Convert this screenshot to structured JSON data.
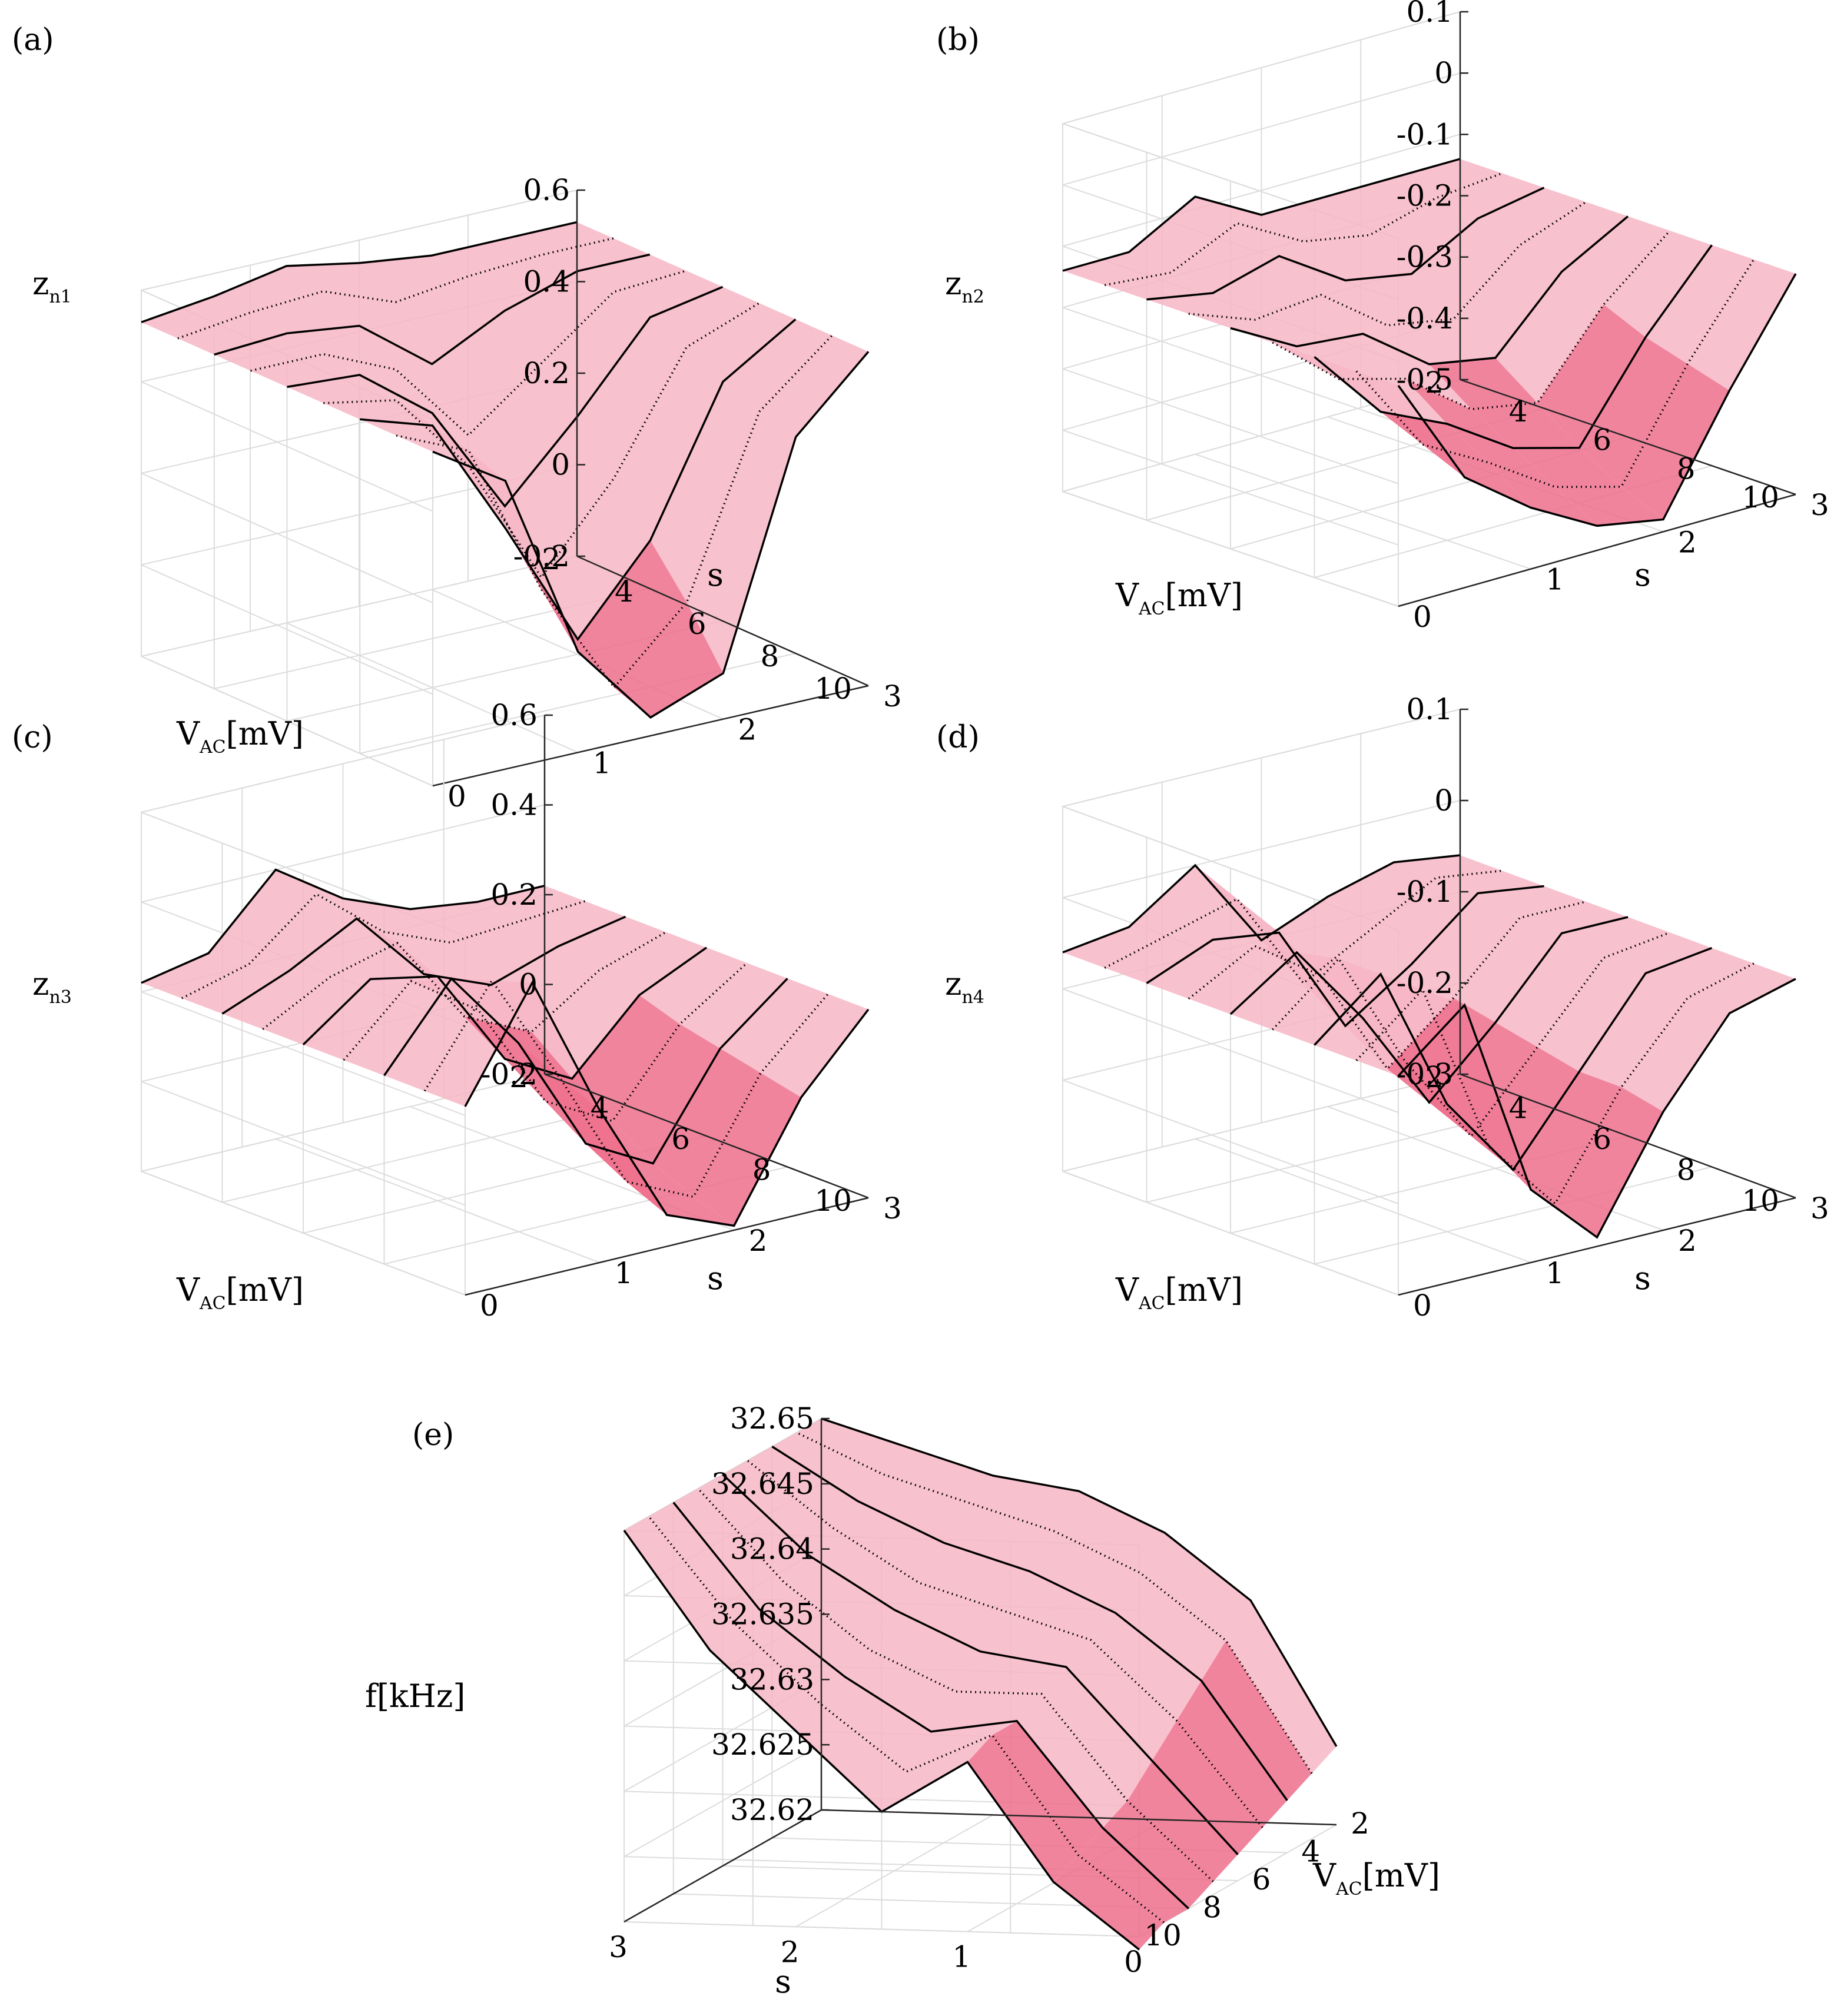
{
  "figure": {
    "accent_color": "#f7b6c6",
    "surface_color": "#f7b6c6",
    "surface_dark_color": "#ee6f8c",
    "curve_color": "#000000",
    "grid": true
  },
  "chart_data": [
    {
      "type": "surface",
      "panel_label": "(a)",
      "zlabel_main": "z",
      "zlabel_sub": "n1",
      "xlabel_main": "V",
      "xlabel_sub": "AC",
      "xlabel_unit": "[mV]",
      "ylabel": "s",
      "x_ticks": [
        "2",
        "4",
        "6",
        "8",
        "10"
      ],
      "y_ticks": [
        "3",
        "2",
        "1",
        "0"
      ],
      "z_ticks": [
        "-0.2",
        "0",
        "0.2",
        "0.4",
        "0.6"
      ],
      "xlim": [
        2,
        10
      ],
      "ylim": [
        0,
        3
      ],
      "zlim": [
        -0.2,
        0.6
      ],
      "curve_VAC": [
        2,
        3,
        4,
        5,
        6,
        7,
        8,
        9,
        10
      ],
      "s_grid": [
        0,
        0.5,
        1.0,
        1.5,
        2.0,
        2.5,
        3.0
      ],
      "surface_z": [
        [
          0.53,
          0.55,
          0.58,
          0.55,
          0.53,
          0.53,
          0.53
        ],
        [
          0.53,
          0.55,
          0.56,
          0.5,
          0.52,
          0.53,
          0.53
        ],
        [
          0.53,
          0.54,
          0.52,
          0.4,
          0.48,
          0.53,
          0.53
        ],
        [
          0.53,
          0.53,
          0.46,
          0.28,
          0.4,
          0.52,
          0.53
        ],
        [
          0.53,
          0.52,
          0.4,
          0.16,
          0.32,
          0.5,
          0.53
        ],
        [
          0.53,
          0.5,
          0.32,
          0.04,
          0.22,
          0.47,
          0.53
        ],
        [
          0.53,
          0.48,
          0.22,
          -0.06,
          0.12,
          0.43,
          0.53
        ],
        [
          0.53,
          0.46,
          0.12,
          -0.13,
          0.02,
          0.4,
          0.53
        ],
        [
          0.53,
          0.43,
          0.02,
          -0.16,
          -0.1,
          0.38,
          0.53
        ]
      ]
    },
    {
      "type": "surface",
      "panel_label": "(b)",
      "zlabel_main": "z",
      "zlabel_sub": "n2",
      "xlabel_main": "V",
      "xlabel_sub": "AC",
      "xlabel_unit": "[mV]",
      "ylabel": "s",
      "x_ticks": [
        "2",
        "4",
        "6",
        "8",
        "10"
      ],
      "y_ticks": [
        "3",
        "2",
        "1",
        "0"
      ],
      "z_ticks": [
        "-0.5",
        "-0.4",
        "-0.3",
        "-0.2",
        "-0.1",
        "0",
        "0.1"
      ],
      "xlim": [
        2,
        10
      ],
      "ylim": [
        0,
        3
      ],
      "zlim": [
        -0.5,
        0.1
      ],
      "curve_VAC": [
        2,
        3,
        4,
        5,
        6,
        7,
        8,
        9,
        10
      ],
      "s_grid": [
        0,
        0.5,
        1.0,
        1.5,
        2.0,
        2.5,
        3.0
      ],
      "surface_z": [
        [
          -0.14,
          -0.14,
          -0.08,
          -0.14,
          -0.14,
          -0.14,
          -0.14
        ],
        [
          -0.14,
          -0.15,
          -0.1,
          -0.16,
          -0.18,
          -0.15,
          -0.14
        ],
        [
          -0.14,
          -0.16,
          -0.13,
          -0.2,
          -0.22,
          -0.16,
          -0.14
        ],
        [
          -0.14,
          -0.18,
          -0.17,
          -0.25,
          -0.27,
          -0.18,
          -0.14
        ],
        [
          -0.14,
          -0.2,
          -0.21,
          -0.29,
          -0.31,
          -0.2,
          -0.14
        ],
        [
          -0.14,
          -0.23,
          -0.26,
          -0.34,
          -0.36,
          -0.23,
          -0.14
        ],
        [
          -0.14,
          -0.26,
          -0.31,
          -0.38,
          -0.41,
          -0.26,
          -0.14
        ],
        [
          -0.14,
          -0.29,
          -0.35,
          -0.42,
          -0.45,
          -0.28,
          -0.14
        ],
        [
          -0.14,
          -0.32,
          -0.4,
          -0.46,
          -0.48,
          -0.3,
          -0.14
        ]
      ]
    },
    {
      "type": "surface",
      "panel_label": "(c)",
      "zlabel_main": "z",
      "zlabel_sub": "n3",
      "xlabel_main": "V",
      "xlabel_sub": "AC",
      "xlabel_unit": "[mV]",
      "ylabel": "s",
      "x_ticks": [
        "2",
        "4",
        "6",
        "8",
        "10"
      ],
      "y_ticks": [
        "3",
        "2",
        "1",
        "0"
      ],
      "z_ticks": [
        "-0.2",
        "0",
        "0.2",
        "0.4",
        "0.6"
      ],
      "xlim": [
        2,
        10
      ],
      "ylim": [
        0,
        3
      ],
      "zlim": [
        -0.2,
        0.6
      ],
      "curve_VAC": [
        2,
        3,
        4,
        5,
        6,
        7,
        8,
        9,
        10
      ],
      "s_grid": [
        0,
        0.5,
        1.0,
        1.5,
        2.0,
        2.5,
        3.0
      ],
      "surface_z": [
        [
          0.22,
          0.25,
          0.4,
          0.3,
          0.24,
          0.22,
          0.22
        ],
        [
          0.22,
          0.26,
          0.38,
          0.26,
          0.2,
          0.21,
          0.22
        ],
        [
          0.22,
          0.28,
          0.36,
          0.2,
          0.14,
          0.19,
          0.22
        ],
        [
          0.22,
          0.3,
          0.34,
          0.14,
          0.07,
          0.17,
          0.22
        ],
        [
          0.22,
          0.33,
          0.3,
          0.08,
          0.0,
          0.15,
          0.22
        ],
        [
          0.22,
          0.36,
          0.26,
          0.02,
          -0.06,
          0.12,
          0.22
        ],
        [
          0.22,
          0.4,
          0.22,
          -0.04,
          -0.12,
          0.1,
          0.22
        ],
        [
          0.22,
          0.43,
          0.18,
          -0.09,
          -0.16,
          0.08,
          0.22
        ],
        [
          0.22,
          0.46,
          0.14,
          -0.13,
          -0.19,
          0.06,
          0.22
        ]
      ]
    },
    {
      "type": "surface",
      "panel_label": "(d)",
      "zlabel_main": "z",
      "zlabel_sub": "n4",
      "xlabel_main": "V",
      "xlabel_sub": "AC",
      "xlabel_unit": "[mV]",
      "ylabel": "s",
      "x_ticks": [
        "2",
        "4",
        "6",
        "8",
        "10"
      ],
      "y_ticks": [
        "3",
        "2",
        "1",
        "0"
      ],
      "z_ticks": [
        "-0.3",
        "-0.2",
        "-0.1",
        "0",
        "0.1"
      ],
      "xlim": [
        2,
        10
      ],
      "ylim": [
        0,
        3
      ],
      "zlim": [
        -0.3,
        0.1
      ],
      "curve_VAC": [
        2,
        3,
        4,
        5,
        6,
        7,
        8,
        9,
        10
      ],
      "s_grid": [
        0,
        0.5,
        1.0,
        1.5,
        2.0,
        2.5,
        3.0
      ],
      "surface_z": [
        [
          -0.06,
          -0.05,
          0.0,
          -0.1,
          -0.07,
          -0.05,
          -0.06
        ],
        [
          -0.06,
          -0.04,
          -0.02,
          -0.13,
          -0.09,
          -0.05,
          -0.06
        ],
        [
          -0.06,
          -0.03,
          -0.04,
          -0.16,
          -0.11,
          -0.05,
          -0.06
        ],
        [
          -0.06,
          -0.02,
          -0.07,
          -0.19,
          -0.13,
          -0.06,
          -0.06
        ],
        [
          -0.06,
          -0.01,
          -0.1,
          -0.21,
          -0.14,
          -0.06,
          -0.06
        ],
        [
          -0.06,
          0.0,
          -0.13,
          -0.23,
          -0.15,
          -0.07,
          -0.06
        ],
        [
          -0.06,
          0.0,
          -0.16,
          -0.25,
          -0.16,
          -0.07,
          -0.06
        ],
        [
          -0.06,
          0.0,
          -0.19,
          -0.27,
          -0.16,
          -0.08,
          -0.06
        ],
        [
          -0.06,
          0.0,
          -0.22,
          -0.29,
          -0.17,
          -0.08,
          -0.06
        ]
      ]
    },
    {
      "type": "surface",
      "panel_label": "(e)",
      "zlabel": "f[kHz]",
      "xlabel_main": "V",
      "xlabel_sub": "AC",
      "xlabel_unit": "[mV]",
      "ylabel": "s",
      "x_ticks": [
        "2",
        "4",
        "6",
        "8",
        "10"
      ],
      "y_ticks": [
        "3",
        "2",
        "1",
        "0"
      ],
      "z_ticks": [
        "32.62",
        "32.625",
        "32.63",
        "32.635",
        "32.64",
        "32.645",
        "32.65"
      ],
      "xlim": [
        2,
        10
      ],
      "ylim": [
        0,
        3
      ],
      "zlim": [
        32.62,
        32.65
      ],
      "curve_VAC": [
        2,
        3,
        4,
        5,
        6,
        7,
        8,
        9,
        10
      ],
      "s_grid": [
        0,
        0.5,
        1.0,
        1.5,
        2.0,
        2.5,
        3.0
      ],
      "surface_z": [
        [
          32.626,
          32.637,
          32.642,
          32.645,
          32.646,
          32.648,
          32.65
        ],
        [
          32.625,
          32.635,
          32.64,
          32.643,
          32.645,
          32.647,
          32.65
        ],
        [
          32.624,
          32.633,
          32.638,
          32.641,
          32.643,
          32.646,
          32.65
        ],
        [
          32.623,
          32.631,
          32.637,
          32.639,
          32.641,
          32.645,
          32.65
        ],
        [
          32.622,
          32.629,
          32.636,
          32.637,
          32.64,
          32.644,
          32.65
        ],
        [
          32.621,
          32.627,
          32.635,
          32.635,
          32.638,
          32.643,
          32.65
        ],
        [
          32.62,
          32.626,
          32.634,
          32.633,
          32.637,
          32.642,
          32.65
        ],
        [
          32.62,
          32.625,
          32.634,
          32.631,
          32.636,
          32.642,
          32.65
        ],
        [
          32.619,
          32.624,
          32.633,
          32.629,
          32.635,
          32.641,
          32.65
        ]
      ]
    }
  ]
}
